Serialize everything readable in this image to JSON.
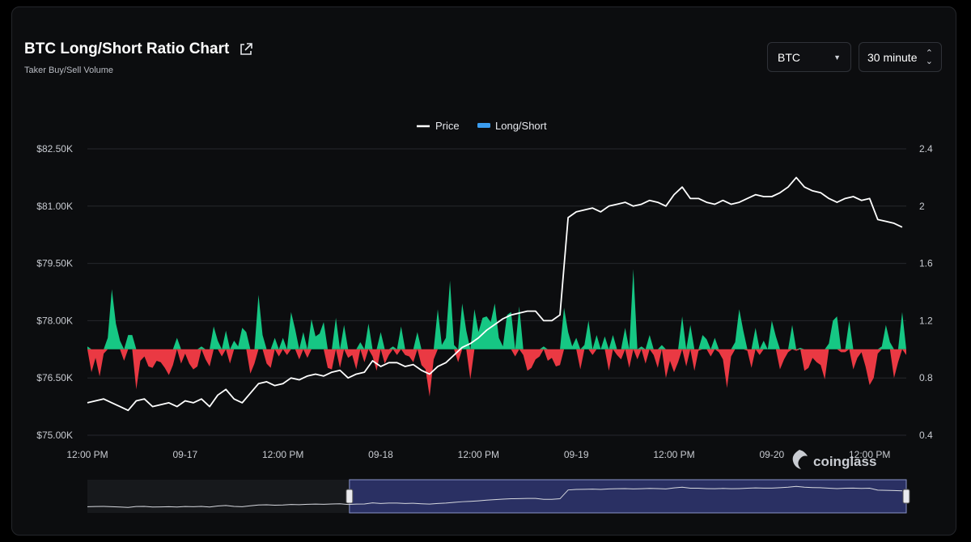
{
  "header": {
    "title": "BTC Long/Short Ratio Chart",
    "subtitle": "Taker Buy/Sell Volume",
    "asset_select": "BTC",
    "interval_select": "30 minute"
  },
  "legend": {
    "price_label": "Price",
    "ratio_label": "Long/Short"
  },
  "watermark": "coinglass",
  "colors": {
    "background": "#0c0d0f",
    "price_line": "#ffffff",
    "long_fill": "#16c784",
    "short_fill": "#ea3943",
    "ratio_legend": "#3b9df0",
    "navigator_selection": "#2e3570"
  },
  "chart_data": {
    "type": "line+area",
    "y_left": {
      "ticks": [
        "$82.50K",
        "$81.00K",
        "$79.50K",
        "$78.00K",
        "$76.50K",
        "$75.00K"
      ],
      "range": [
        75000,
        82500
      ]
    },
    "y_right": {
      "ticks": [
        "2.4",
        "2",
        "1.6",
        "1.2",
        "0.8",
        "0.4"
      ],
      "range": [
        0.4,
        2.4
      ],
      "baseline": 1.0
    },
    "x_ticks": [
      "12:00 PM",
      "09-17",
      "12:00 PM",
      "09-18",
      "12:00 PM",
      "09-19",
      "12:00 PM",
      "09-20",
      "12:00 PM"
    ],
    "x_tick_positions": [
      0,
      12,
      24,
      36,
      48,
      60,
      72,
      84,
      96
    ],
    "x_range": [
      0,
      100.5
    ],
    "series": [
      {
        "name": "Price",
        "kind": "line",
        "axis": "left",
        "points": [
          [
            0,
            75850
          ],
          [
            1,
            75900
          ],
          [
            2,
            75950
          ],
          [
            3,
            75850
          ],
          [
            4,
            75750
          ],
          [
            5,
            75650
          ],
          [
            6,
            75900
          ],
          [
            7,
            75950
          ],
          [
            8,
            75750
          ],
          [
            9,
            75800
          ],
          [
            10,
            75850
          ],
          [
            11,
            75750
          ],
          [
            12,
            75900
          ],
          [
            13,
            75850
          ],
          [
            14,
            75950
          ],
          [
            15,
            75750
          ],
          [
            16,
            76050
          ],
          [
            17,
            76200
          ],
          [
            18,
            75950
          ],
          [
            19,
            75850
          ],
          [
            20,
            76100
          ],
          [
            21,
            76350
          ],
          [
            22,
            76400
          ],
          [
            23,
            76300
          ],
          [
            24,
            76350
          ],
          [
            25,
            76500
          ],
          [
            26,
            76450
          ],
          [
            27,
            76550
          ],
          [
            28,
            76600
          ],
          [
            29,
            76550
          ],
          [
            30,
            76650
          ],
          [
            31,
            76700
          ],
          [
            32,
            76500
          ],
          [
            33,
            76600
          ],
          [
            34,
            76650
          ],
          [
            35,
            76950
          ],
          [
            36,
            76800
          ],
          [
            37,
            76900
          ],
          [
            38,
            76900
          ],
          [
            39,
            76800
          ],
          [
            40,
            76850
          ],
          [
            41,
            76700
          ],
          [
            42,
            76600
          ],
          [
            43,
            76800
          ],
          [
            44,
            76900
          ],
          [
            45,
            77100
          ],
          [
            46,
            77300
          ],
          [
            47,
            77400
          ],
          [
            48,
            77550
          ],
          [
            49,
            77750
          ],
          [
            50,
            77900
          ],
          [
            51,
            78050
          ],
          [
            52,
            78150
          ],
          [
            53,
            78200
          ],
          [
            54,
            78250
          ],
          [
            55,
            78250
          ],
          [
            56,
            78000
          ],
          [
            57,
            78000
          ],
          [
            58,
            78150
          ],
          [
            59,
            80700
          ],
          [
            60,
            80850
          ],
          [
            61,
            80900
          ],
          [
            62,
            80950
          ],
          [
            63,
            80850
          ],
          [
            64,
            81000
          ],
          [
            65,
            81050
          ],
          [
            66,
            81100
          ],
          [
            67,
            81000
          ],
          [
            68,
            81050
          ],
          [
            69,
            81150
          ],
          [
            70,
            81100
          ],
          [
            71,
            81000
          ],
          [
            72,
            81300
          ],
          [
            73,
            81500
          ],
          [
            74,
            81200
          ],
          [
            75,
            81200
          ],
          [
            76,
            81100
          ],
          [
            77,
            81050
          ],
          [
            78,
            81150
          ],
          [
            79,
            81050
          ],
          [
            80,
            81100
          ],
          [
            81,
            81200
          ],
          [
            82,
            81300
          ],
          [
            83,
            81250
          ],
          [
            84,
            81250
          ],
          [
            85,
            81350
          ],
          [
            86,
            81500
          ],
          [
            87,
            81750
          ],
          [
            88,
            81500
          ],
          [
            89,
            81400
          ],
          [
            90,
            81350
          ],
          [
            91,
            81200
          ],
          [
            92,
            81100
          ],
          [
            93,
            81200
          ],
          [
            94,
            81250
          ],
          [
            95,
            81150
          ],
          [
            96,
            81200
          ],
          [
            97,
            80650
          ],
          [
            98,
            80600
          ],
          [
            99,
            80550
          ],
          [
            100,
            80450
          ]
        ]
      },
      {
        "name": "Long/Short",
        "kind": "area",
        "axis": "right",
        "points": [
          [
            0,
            1.02
          ],
          [
            0.5,
            0.84
          ],
          [
            1,
            0.94
          ],
          [
            1.5,
            0.81
          ],
          [
            2,
            0.97
          ],
          [
            2.5,
            1.08
          ],
          [
            3,
            1.42
          ],
          [
            3.5,
            1.18
          ],
          [
            4,
            1.06
          ],
          [
            4.5,
            0.92
          ],
          [
            5,
            1.1
          ],
          [
            5.5,
            1.1
          ],
          [
            6,
            0.72
          ],
          [
            6.5,
            0.92
          ],
          [
            7,
            0.95
          ],
          [
            7.5,
            0.88
          ],
          [
            8,
            0.87
          ],
          [
            8.5,
            0.92
          ],
          [
            9,
            0.91
          ],
          [
            9.5,
            0.87
          ],
          [
            10,
            0.82
          ],
          [
            10.5,
            0.89
          ],
          [
            11,
            1.08
          ],
          [
            11.5,
            0.9
          ],
          [
            12,
            0.97
          ],
          [
            12.5,
            0.9
          ],
          [
            13,
            0.86
          ],
          [
            13.5,
            0.88
          ],
          [
            14,
            1.02
          ],
          [
            14.5,
            0.93
          ],
          [
            15,
            0.88
          ],
          [
            15.5,
            1.16
          ],
          [
            16,
            1.06
          ],
          [
            16.5,
            0.95
          ],
          [
            17,
            1.13
          ],
          [
            17.5,
            0.9
          ],
          [
            18,
            1.06
          ],
          [
            18.5,
            1.02
          ],
          [
            19,
            1.15
          ],
          [
            19.5,
            1.12
          ],
          [
            20,
            0.83
          ],
          [
            20.5,
            0.9
          ],
          [
            21,
            1.38
          ],
          [
            21.5,
            1.1
          ],
          [
            22,
            0.9
          ],
          [
            22.5,
            0.87
          ],
          [
            23,
            1.08
          ],
          [
            23.5,
            0.95
          ],
          [
            24,
            1.08
          ],
          [
            24.5,
            0.96
          ],
          [
            25,
            1.26
          ],
          [
            25.5,
            1.14
          ],
          [
            26,
            0.93
          ],
          [
            26.5,
            1.12
          ],
          [
            27,
            0.94
          ],
          [
            27.5,
            1.21
          ],
          [
            28,
            1.09
          ],
          [
            28.5,
            1.11
          ],
          [
            29,
            1.19
          ],
          [
            29.5,
            0.87
          ],
          [
            30,
            0.86
          ],
          [
            30.5,
            1.22
          ],
          [
            31,
            0.87
          ],
          [
            31.5,
            1.17
          ],
          [
            32,
            0.94
          ],
          [
            32.5,
            0.96
          ],
          [
            33,
            0.86
          ],
          [
            33.5,
            1.05
          ],
          [
            34,
            0.91
          ],
          [
            34.5,
            1.18
          ],
          [
            35,
            0.95
          ],
          [
            35.5,
            0.85
          ],
          [
            36,
            1.12
          ],
          [
            36.5,
            0.9
          ],
          [
            37,
            0.96
          ],
          [
            37.5,
            1.02
          ],
          [
            38,
            0.96
          ],
          [
            38.5,
            1.16
          ],
          [
            39,
            0.96
          ],
          [
            39.5,
            0.95
          ],
          [
            40,
            0.91
          ],
          [
            40.5,
            1.12
          ],
          [
            41,
            0.89
          ],
          [
            41.5,
            0.86
          ],
          [
            42,
            0.67
          ],
          [
            42.5,
            0.93
          ],
          [
            43,
            1.28
          ],
          [
            43.5,
            1.03
          ],
          [
            44,
            1.08
          ],
          [
            44.5,
            1.48
          ],
          [
            45,
            1.03
          ],
          [
            45.5,
            0.91
          ],
          [
            46,
            1.32
          ],
          [
            46.5,
            1.13
          ],
          [
            47,
            0.79
          ],
          [
            47.5,
            1.28
          ],
          [
            48,
            1.12
          ],
          [
            48.5,
            1.22
          ],
          [
            49,
            1.23
          ],
          [
            49.5,
            1.19
          ],
          [
            50,
            1.32
          ],
          [
            50.5,
            1.08
          ],
          [
            51,
            1.02
          ],
          [
            51.5,
            1.24
          ],
          [
            52,
            1.26
          ],
          [
            52.5,
            0.95
          ],
          [
            53,
            1.3
          ],
          [
            53.5,
            0.96
          ],
          [
            54,
            0.85
          ],
          [
            54.5,
            0.87
          ],
          [
            55,
            0.93
          ],
          [
            55.5,
            0.95
          ],
          [
            56,
            1.02
          ],
          [
            56.5,
            0.92
          ],
          [
            57,
            0.94
          ],
          [
            57.5,
            0.88
          ],
          [
            58,
            0.89
          ],
          [
            58.5,
            1.29
          ],
          [
            59,
            1.12
          ],
          [
            59.5,
            1.02
          ],
          [
            60,
            1.08
          ],
          [
            60.5,
            0.86
          ],
          [
            61,
            1.03
          ],
          [
            61.5,
            1.2
          ],
          [
            62,
            0.96
          ],
          [
            62.5,
            1.1
          ],
          [
            63,
            1.0
          ],
          [
            63.5,
            1.09
          ],
          [
            64,
            0.85
          ],
          [
            64.5,
            1.1
          ],
          [
            65,
            0.96
          ],
          [
            65.5,
            0.93
          ],
          [
            66,
            1.15
          ],
          [
            66.5,
            0.87
          ],
          [
            67,
            1.56
          ],
          [
            67.5,
            0.93
          ],
          [
            68,
            1.02
          ],
          [
            68.5,
            0.9
          ],
          [
            69,
            1.1
          ],
          [
            69.5,
            0.96
          ],
          [
            70,
            0.87
          ],
          [
            70.5,
            1.03
          ],
          [
            71,
            0.8
          ],
          [
            71.5,
            0.92
          ],
          [
            72,
            0.84
          ],
          [
            72.5,
            0.91
          ],
          [
            73,
            1.23
          ],
          [
            73.5,
            0.88
          ],
          [
            74,
            1.17
          ],
          [
            74.5,
            0.85
          ],
          [
            75,
            0.99
          ],
          [
            75.5,
            1.1
          ],
          [
            76,
            1.07
          ],
          [
            76.5,
            0.95
          ],
          [
            77,
            1.08
          ],
          [
            77.5,
            0.98
          ],
          [
            78,
            0.93
          ],
          [
            78.5,
            0.73
          ],
          [
            79,
            0.95
          ],
          [
            79.5,
            1.05
          ],
          [
            80,
            1.28
          ],
          [
            80.5,
            1.13
          ],
          [
            81,
            0.99
          ],
          [
            81.5,
            0.87
          ],
          [
            82,
            1.15
          ],
          [
            82.5,
            0.96
          ],
          [
            83,
            1.06
          ],
          [
            83.5,
            1.0
          ],
          [
            84,
            1.2
          ],
          [
            84.5,
            1.09
          ],
          [
            85,
            0.86
          ],
          [
            85.5,
            0.93
          ],
          [
            86,
            0.98
          ],
          [
            86.5,
            1.17
          ],
          [
            87,
            0.99
          ],
          [
            87.5,
            1.01
          ],
          [
            88,
            0.85
          ],
          [
            88.5,
            0.87
          ],
          [
            89,
            0.94
          ],
          [
            89.5,
            0.91
          ],
          [
            90,
            0.89
          ],
          [
            90.5,
            0.79
          ],
          [
            91,
            1.04
          ],
          [
            91.5,
            1.2
          ],
          [
            92,
            1.23
          ],
          [
            92.5,
            0.98
          ],
          [
            93,
            0.98
          ],
          [
            93.5,
            1.2
          ],
          [
            94,
            0.86
          ],
          [
            94.5,
            0.94
          ],
          [
            95,
            0.98
          ],
          [
            95.5,
            0.88
          ],
          [
            96,
            0.75
          ],
          [
            96.5,
            0.8
          ],
          [
            97,
            0.97
          ],
          [
            97.5,
            1.02
          ],
          [
            98,
            1.17
          ],
          [
            98.5,
            1.05
          ],
          [
            99,
            0.8
          ],
          [
            99.5,
            0.91
          ],
          [
            100,
            1.26
          ],
          [
            100.5,
            0.96
          ]
        ]
      }
    ],
    "navigator": {
      "selected_range": [
        0.32,
        1.0
      ]
    }
  }
}
